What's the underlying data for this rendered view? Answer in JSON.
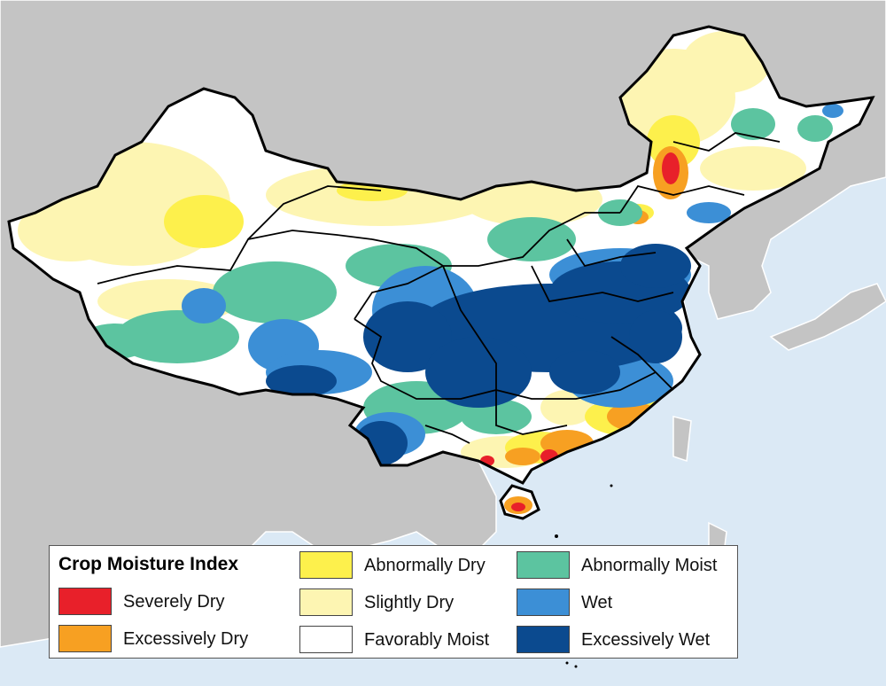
{
  "legend": {
    "title": "Crop Moisture Index",
    "items": [
      {
        "label": "Severely Dry",
        "color": "#e8202a"
      },
      {
        "label": "Excessively Dry",
        "color": "#f7a022"
      },
      {
        "label": "Abnormally Dry",
        "color": "#fdf04c"
      },
      {
        "label": "Slightly Dry",
        "color": "#fdf5b2"
      },
      {
        "label": "Favorably Moist",
        "color": "#ffffff"
      },
      {
        "label": "Abnormally Moist",
        "color": "#5cc4a0"
      },
      {
        "label": "Wet",
        "color": "#3c8fd6"
      },
      {
        "label": "Excessively Wet",
        "color": "#0b4a8f"
      }
    ]
  },
  "colors": {
    "ocean": "#dbe9f5",
    "land_outside": "#c4c4c4",
    "border": "#000000"
  }
}
